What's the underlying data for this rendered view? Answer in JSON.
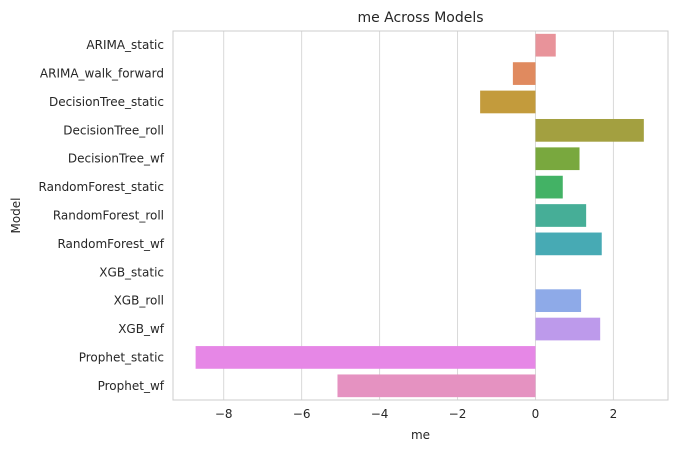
{
  "chart_data": {
    "type": "bar",
    "orientation": "horizontal",
    "title": "me Across Models",
    "xlabel": "me",
    "ylabel": "Model",
    "xlim": [
      -9.3,
      3.4
    ],
    "x_ticks": [
      -8,
      -6,
      -4,
      -2,
      0,
      2
    ],
    "x_tick_labels": [
      "−8",
      "−6",
      "−4",
      "−2",
      "0",
      "2"
    ],
    "grid": "vertical",
    "categories": [
      "ARIMA_static",
      "ARIMA_walk_forward",
      "DecisionTree_static",
      "DecisionTree_roll",
      "DecisionTree_wf",
      "RandomForest_static",
      "RandomForest_roll",
      "RandomForest_wf",
      "XGB_static",
      "XGB_roll",
      "XGB_wf",
      "Prophet_static",
      "Prophet_wf"
    ],
    "values": [
      0.52,
      -0.58,
      -1.42,
      2.78,
      1.13,
      0.7,
      1.3,
      1.7,
      0.0,
      1.17,
      1.66,
      -8.72,
      -5.08
    ],
    "colors": [
      "#e8939a",
      "#e08a5f",
      "#c39b3c",
      "#a3a040",
      "#79a83e",
      "#43b265",
      "#46ae97",
      "#47aab4",
      "#62b0d9",
      "#8eaae8",
      "#bd9aeb",
      "#e687e6",
      "#e592c1"
    ]
  }
}
